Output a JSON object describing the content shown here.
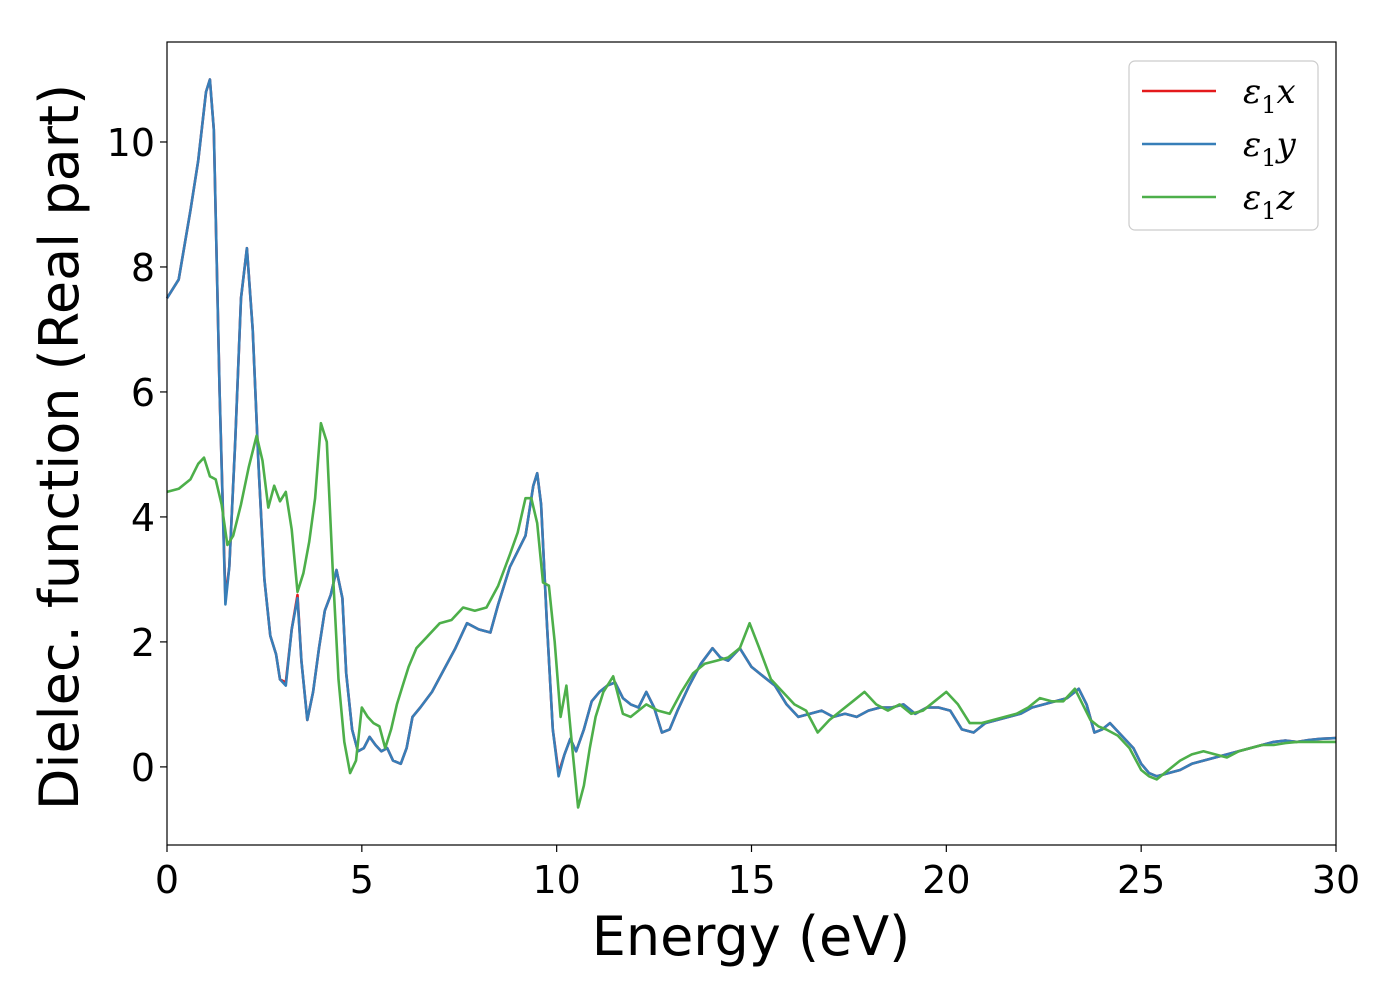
{
  "chart_data": {
    "type": "line",
    "xlabel": "Energy (eV)",
    "ylabel": "Dielec. function (Real part)",
    "xlim": [
      0,
      30
    ],
    "ylim": [
      -1.25,
      11.6
    ],
    "xticks": [
      0,
      5,
      10,
      15,
      20,
      25,
      30
    ],
    "yticks": [
      0,
      2,
      4,
      6,
      8,
      10
    ],
    "grid": false,
    "legend_position": "top-right",
    "series": [
      {
        "name": "ε1x",
        "legend_main": "ε",
        "legend_sub": "1",
        "legend_tail": "x",
        "color": "#e41a1c",
        "x": [
          0,
          0.3,
          0.6,
          0.8,
          1.0,
          1.1,
          1.2,
          1.35,
          1.5,
          1.6,
          1.75,
          1.9,
          2.05,
          2.2,
          2.35,
          2.5,
          2.65,
          2.8,
          2.9,
          3.05,
          3.2,
          3.35,
          3.45,
          3.6,
          3.75,
          3.9,
          4.05,
          4.2,
          4.35,
          4.5,
          4.6,
          4.75,
          4.9,
          5.05,
          5.2,
          5.35,
          5.5,
          5.65,
          5.8,
          6.0,
          6.15,
          6.3,
          6.5,
          6.8,
          7.1,
          7.4,
          7.7,
          8.0,
          8.3,
          8.5,
          8.8,
          9.0,
          9.2,
          9.4,
          9.5,
          9.6,
          9.75,
          9.9,
          10.05,
          10.2,
          10.35,
          10.5,
          10.7,
          10.9,
          11.1,
          11.3,
          11.5,
          11.7,
          11.9,
          12.1,
          12.3,
          12.5,
          12.7,
          12.9,
          13.1,
          13.4,
          13.7,
          14.0,
          14.2,
          14.4,
          14.7,
          15.0,
          15.3,
          15.6,
          15.9,
          16.2,
          16.5,
          16.8,
          17.1,
          17.4,
          17.7,
          18.0,
          18.3,
          18.6,
          18.9,
          19.2,
          19.5,
          19.8,
          20.1,
          20.4,
          20.7,
          21.0,
          21.3,
          21.6,
          21.9,
          22.2,
          22.5,
          22.8,
          23.1,
          23.4,
          23.6,
          23.8,
          24.0,
          24.2,
          24.5,
          24.8,
          25.0,
          25.2,
          25.4,
          25.7,
          26.0,
          26.3,
          26.6,
          26.9,
          27.2,
          27.5,
          27.8,
          28.1,
          28.4,
          28.7,
          29.0,
          29.3,
          29.6,
          30.0
        ],
        "y": [
          7.5,
          7.8,
          8.9,
          9.7,
          10.8,
          11.0,
          10.2,
          6.0,
          2.7,
          3.2,
          5.2,
          7.5,
          8.3,
          7.0,
          4.8,
          3.0,
          2.1,
          1.8,
          1.4,
          1.35,
          2.2,
          2.75,
          1.7,
          0.75,
          1.2,
          1.9,
          2.5,
          2.75,
          3.15,
          2.7,
          1.5,
          0.6,
          0.25,
          0.3,
          0.48,
          0.35,
          0.25,
          0.3,
          0.1,
          0.05,
          0.3,
          0.8,
          0.95,
          1.2,
          1.55,
          1.9,
          2.3,
          2.2,
          2.15,
          2.6,
          3.2,
          3.45,
          3.7,
          4.5,
          4.7,
          4.2,
          2.3,
          0.6,
          -0.1,
          0.2,
          0.45,
          0.25,
          0.6,
          1.05,
          1.2,
          1.3,
          1.35,
          1.1,
          1.0,
          0.95,
          1.2,
          0.95,
          0.55,
          0.6,
          0.9,
          1.3,
          1.65,
          1.9,
          1.75,
          1.7,
          1.9,
          1.6,
          1.45,
          1.3,
          1.0,
          0.8,
          0.85,
          0.9,
          0.8,
          0.85,
          0.8,
          0.9,
          0.95,
          0.95,
          1.0,
          0.85,
          0.95,
          0.95,
          0.9,
          0.6,
          0.55,
          0.7,
          0.75,
          0.8,
          0.85,
          0.95,
          1.0,
          1.05,
          1.1,
          1.25,
          1.0,
          0.55,
          0.6,
          0.7,
          0.5,
          0.3,
          0.05,
          -0.1,
          -0.15,
          -0.1,
          -0.05,
          0.05,
          0.1,
          0.15,
          0.2,
          0.25,
          0.3,
          0.35,
          0.4,
          0.42,
          0.4,
          0.43,
          0.45,
          0.46
        ]
      },
      {
        "name": "ε1y",
        "legend_main": "ε",
        "legend_sub": "1",
        "legend_tail": "y",
        "color": "#377eb8",
        "x": [
          0,
          0.3,
          0.6,
          0.8,
          1.0,
          1.1,
          1.2,
          1.35,
          1.5,
          1.6,
          1.75,
          1.9,
          2.05,
          2.2,
          2.35,
          2.5,
          2.65,
          2.8,
          2.9,
          3.05,
          3.2,
          3.35,
          3.45,
          3.6,
          3.75,
          3.9,
          4.05,
          4.2,
          4.35,
          4.5,
          4.6,
          4.75,
          4.9,
          5.05,
          5.2,
          5.35,
          5.5,
          5.65,
          5.8,
          6.0,
          6.15,
          6.3,
          6.5,
          6.8,
          7.1,
          7.4,
          7.7,
          8.0,
          8.3,
          8.5,
          8.8,
          9.0,
          9.2,
          9.4,
          9.5,
          9.6,
          9.75,
          9.9,
          10.05,
          10.2,
          10.35,
          10.5,
          10.7,
          10.9,
          11.1,
          11.3,
          11.5,
          11.7,
          11.9,
          12.1,
          12.3,
          12.5,
          12.7,
          12.9,
          13.1,
          13.4,
          13.7,
          14.0,
          14.2,
          14.4,
          14.7,
          15.0,
          15.3,
          15.6,
          15.9,
          16.2,
          16.5,
          16.8,
          17.1,
          17.4,
          17.7,
          18.0,
          18.3,
          18.6,
          18.9,
          19.2,
          19.5,
          19.8,
          20.1,
          20.4,
          20.7,
          21.0,
          21.3,
          21.6,
          21.9,
          22.2,
          22.5,
          22.8,
          23.1,
          23.4,
          23.6,
          23.8,
          24.0,
          24.2,
          24.5,
          24.8,
          25.0,
          25.2,
          25.4,
          25.7,
          26.0,
          26.3,
          26.6,
          26.9,
          27.2,
          27.5,
          27.8,
          28.1,
          28.4,
          28.7,
          29.0,
          29.3,
          29.6,
          30.0
        ],
        "y": [
          7.5,
          7.8,
          8.9,
          9.7,
          10.8,
          11.0,
          10.2,
          6.0,
          2.6,
          3.2,
          5.2,
          7.5,
          8.3,
          7.0,
          4.8,
          3.0,
          2.1,
          1.8,
          1.4,
          1.3,
          2.2,
          2.7,
          1.7,
          0.75,
          1.2,
          1.9,
          2.5,
          2.75,
          3.15,
          2.7,
          1.5,
          0.6,
          0.25,
          0.3,
          0.48,
          0.35,
          0.25,
          0.3,
          0.1,
          0.05,
          0.3,
          0.8,
          0.95,
          1.2,
          1.55,
          1.9,
          2.3,
          2.2,
          2.15,
          2.6,
          3.2,
          3.45,
          3.7,
          4.5,
          4.7,
          4.2,
          2.3,
          0.6,
          -0.15,
          0.2,
          0.45,
          0.25,
          0.6,
          1.05,
          1.2,
          1.3,
          1.35,
          1.1,
          1.0,
          0.95,
          1.2,
          0.95,
          0.55,
          0.6,
          0.9,
          1.3,
          1.65,
          1.9,
          1.75,
          1.7,
          1.9,
          1.6,
          1.45,
          1.3,
          1.0,
          0.8,
          0.85,
          0.9,
          0.8,
          0.85,
          0.8,
          0.9,
          0.95,
          0.95,
          1.0,
          0.85,
          0.95,
          0.95,
          0.9,
          0.6,
          0.55,
          0.7,
          0.75,
          0.8,
          0.85,
          0.95,
          1.0,
          1.05,
          1.1,
          1.25,
          1.0,
          0.55,
          0.6,
          0.7,
          0.5,
          0.3,
          0.05,
          -0.1,
          -0.15,
          -0.1,
          -0.05,
          0.05,
          0.1,
          0.15,
          0.2,
          0.25,
          0.3,
          0.35,
          0.4,
          0.42,
          0.4,
          0.43,
          0.45,
          0.46
        ]
      },
      {
        "name": "ε1z",
        "legend_main": "ε",
        "legend_sub": "1",
        "legend_tail": "z",
        "color": "#4daf4a",
        "x": [
          0,
          0.3,
          0.6,
          0.8,
          0.95,
          1.1,
          1.25,
          1.4,
          1.55,
          1.7,
          1.9,
          2.1,
          2.3,
          2.45,
          2.6,
          2.75,
          2.9,
          3.05,
          3.2,
          3.35,
          3.5,
          3.65,
          3.8,
          3.95,
          4.1,
          4.25,
          4.4,
          4.55,
          4.7,
          4.85,
          5.0,
          5.15,
          5.3,
          5.45,
          5.6,
          5.75,
          5.9,
          6.05,
          6.2,
          6.4,
          6.7,
          7.0,
          7.3,
          7.6,
          7.9,
          8.2,
          8.5,
          8.8,
          9.0,
          9.2,
          9.35,
          9.5,
          9.65,
          9.8,
          9.95,
          10.1,
          10.25,
          10.4,
          10.55,
          10.7,
          10.85,
          11.0,
          11.2,
          11.45,
          11.7,
          11.9,
          12.1,
          12.3,
          12.6,
          12.9,
          13.2,
          13.5,
          13.8,
          14.1,
          14.4,
          14.7,
          14.95,
          15.2,
          15.5,
          15.8,
          16.1,
          16.4,
          16.7,
          17.0,
          17.3,
          17.6,
          17.9,
          18.2,
          18.5,
          18.8,
          19.1,
          19.4,
          19.7,
          20.0,
          20.3,
          20.6,
          20.9,
          21.2,
          21.5,
          21.8,
          22.1,
          22.4,
          22.7,
          23.0,
          23.3,
          23.5,
          23.7,
          23.9,
          24.1,
          24.4,
          24.7,
          25.0,
          25.2,
          25.4,
          25.7,
          26.0,
          26.3,
          26.6,
          26.9,
          27.2,
          27.5,
          27.8,
          28.1,
          28.4,
          28.7,
          29.0,
          29.3,
          29.6,
          30.0
        ],
        "y": [
          4.4,
          4.45,
          4.6,
          4.85,
          4.95,
          4.65,
          4.6,
          4.2,
          3.55,
          3.7,
          4.2,
          4.8,
          5.3,
          4.9,
          4.15,
          4.5,
          4.25,
          4.4,
          3.8,
          2.8,
          3.1,
          3.6,
          4.3,
          5.5,
          5.2,
          3.2,
          1.4,
          0.4,
          -0.1,
          0.1,
          0.95,
          0.8,
          0.7,
          0.65,
          0.3,
          0.6,
          1.0,
          1.3,
          1.6,
          1.9,
          2.1,
          2.3,
          2.35,
          2.55,
          2.5,
          2.55,
          2.9,
          3.4,
          3.75,
          4.3,
          4.3,
          3.9,
          2.95,
          2.9,
          2.0,
          0.8,
          1.3,
          0.3,
          -0.65,
          -0.3,
          0.3,
          0.8,
          1.2,
          1.45,
          0.85,
          0.8,
          0.9,
          1.0,
          0.9,
          0.85,
          1.2,
          1.5,
          1.65,
          1.7,
          1.75,
          1.9,
          2.3,
          1.9,
          1.4,
          1.2,
          1.0,
          0.9,
          0.55,
          0.75,
          0.9,
          1.05,
          1.2,
          1.0,
          0.9,
          1.0,
          0.85,
          0.9,
          1.05,
          1.2,
          1.0,
          0.7,
          0.7,
          0.75,
          0.8,
          0.85,
          0.95,
          1.1,
          1.05,
          1.05,
          1.25,
          1.0,
          0.75,
          0.65,
          0.6,
          0.5,
          0.3,
          -0.05,
          -0.15,
          -0.2,
          -0.05,
          0.1,
          0.2,
          0.25,
          0.2,
          0.15,
          0.25,
          0.3,
          0.35,
          0.35,
          0.38,
          0.4,
          0.4,
          0.4,
          0.4
        ]
      }
    ]
  }
}
